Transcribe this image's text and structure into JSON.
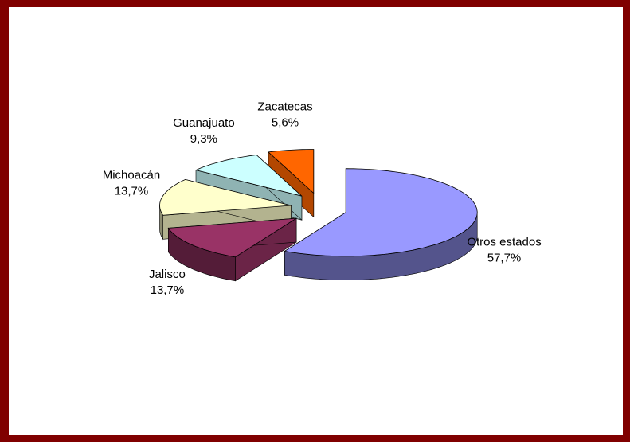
{
  "chart_data": {
    "type": "pie3d",
    "categories": [
      "Otros estados",
      "Jalisco",
      "Michoacán",
      "Guanajuato",
      "Zacatecas"
    ],
    "values": [
      57.7,
      13.7,
      13.7,
      9.3,
      5.6
    ],
    "value_labels": [
      "57,7%",
      "13,7%",
      "13,7%",
      "9,3%",
      "5,6%"
    ],
    "colors": [
      "#9999ff",
      "#993366",
      "#ffffcc",
      "#ccffff",
      "#ff6600"
    ]
  }
}
